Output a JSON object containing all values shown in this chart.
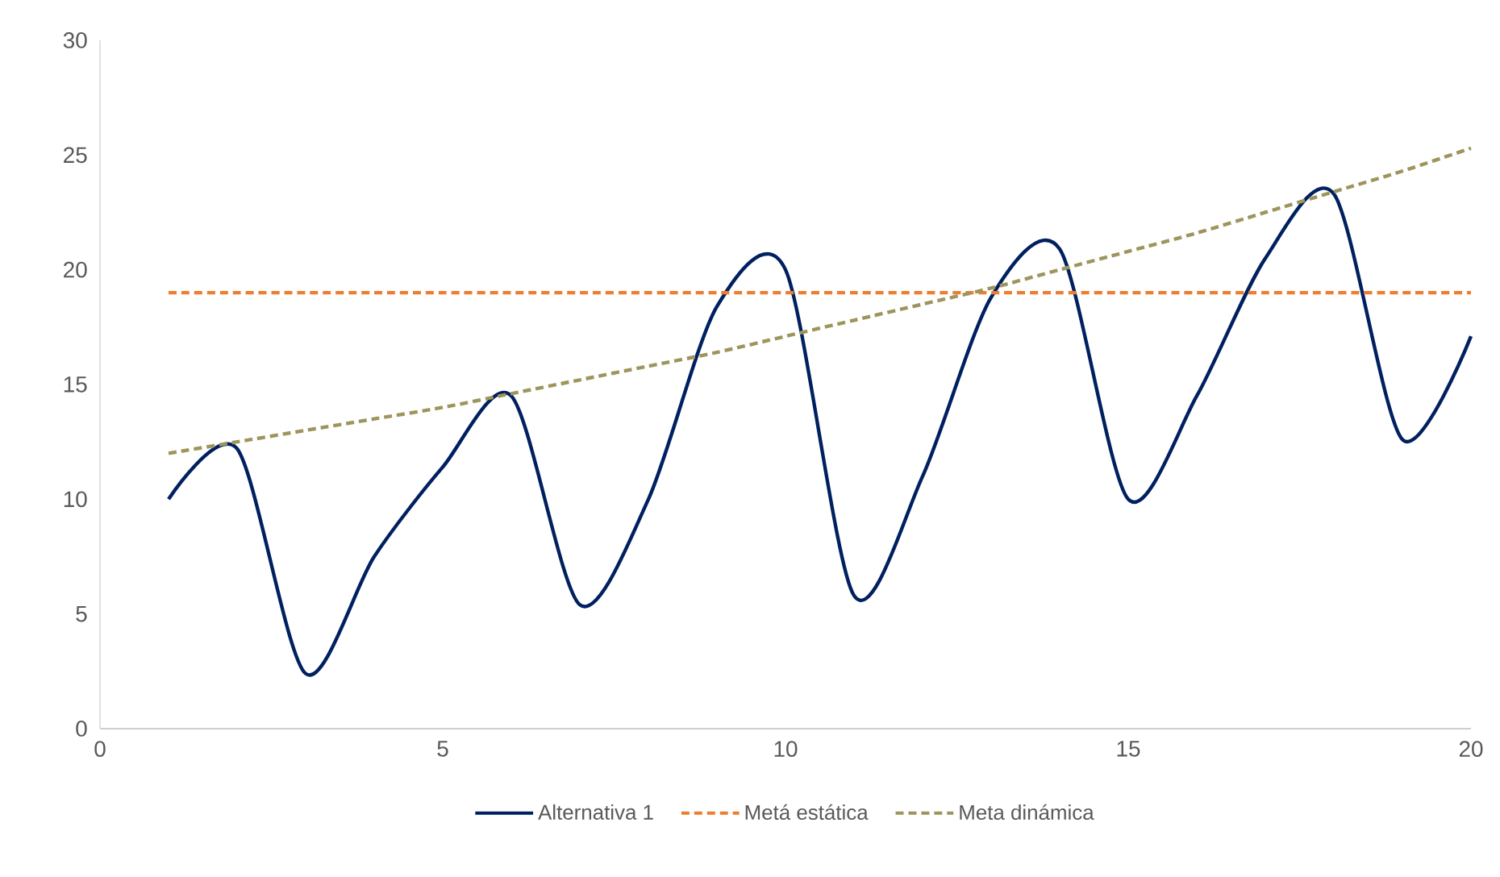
{
  "chart_data": {
    "type": "line",
    "x": [
      1,
      2,
      3,
      4,
      5,
      6,
      7,
      8,
      9,
      10,
      11,
      12,
      13,
      14,
      15,
      16,
      17,
      18,
      19,
      20
    ],
    "series": [
      {
        "name": "Alternativa 1",
        "color": "#002060",
        "line_style": "solid",
        "values": [
          10,
          12.2,
          2.4,
          7.5,
          11.4,
          14.5,
          5.4,
          10,
          18.4,
          20,
          5.8,
          11,
          18.8,
          20.9,
          10,
          14.5,
          20.5,
          23.3,
          12.6,
          17.1
        ]
      },
      {
        "name": "Metá estática",
        "color": "#ED7D31",
        "line_style": "dashed",
        "values": [
          19,
          19,
          19,
          19,
          19,
          19,
          19,
          19,
          19,
          19,
          19,
          19,
          19,
          19,
          19,
          19,
          19,
          19,
          19,
          19
        ]
      },
      {
        "name": "Meta dinámica",
        "color": "#9E955D",
        "line_style": "dashed",
        "values": [
          12,
          12.5,
          13,
          13.5,
          14,
          14.6,
          15.2,
          15.8,
          16.4,
          17.1,
          17.8,
          18.5,
          19.2,
          20,
          20.8,
          21.6,
          22.5,
          23.4,
          24.3,
          25.3
        ]
      }
    ],
    "xlim": [
      0,
      20
    ],
    "xticks": [
      0,
      5,
      10,
      15,
      20
    ],
    "ylim": [
      0,
      30
    ],
    "yticks": [
      0,
      5,
      10,
      15,
      20,
      25,
      30
    ],
    "grid": false,
    "legend": "bottom",
    "marker": "none"
  }
}
